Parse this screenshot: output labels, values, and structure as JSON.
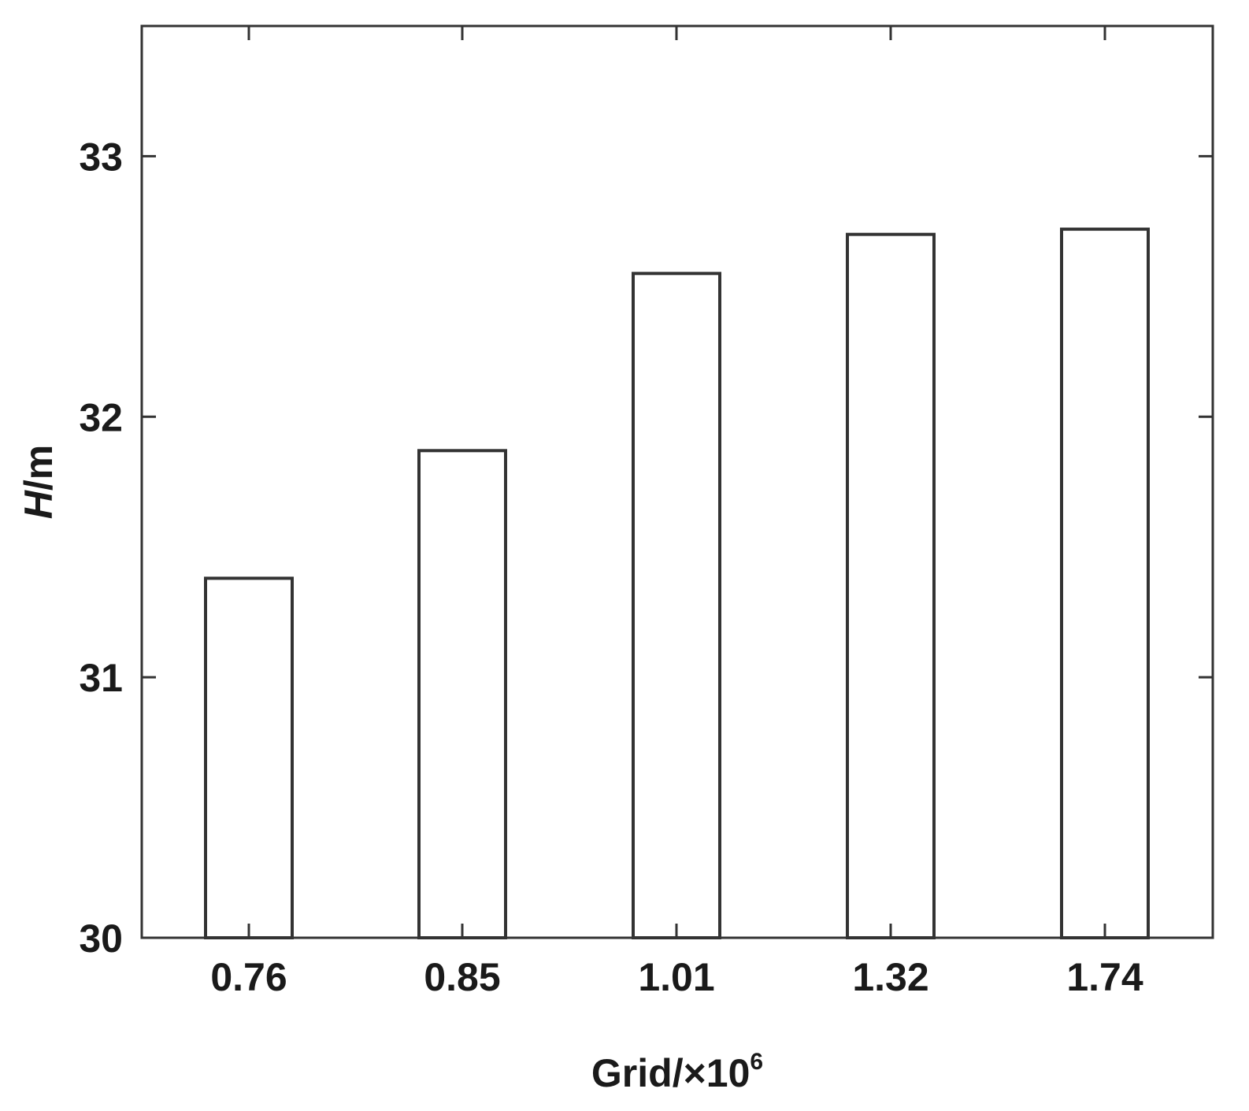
{
  "chart_data": {
    "type": "bar",
    "categories": [
      "0.76",
      "0.85",
      "1.01",
      "1.32",
      "1.74"
    ],
    "values": [
      31.38,
      31.87,
      32.55,
      32.7,
      32.72
    ],
    "title": "",
    "xlabel": {
      "base": "Grid/×10",
      "superscript": "6"
    },
    "ylabel": {
      "italic_part": "H",
      "rest": "/m"
    },
    "ylim": [
      30,
      33.5
    ],
    "yticks": [
      30,
      31,
      32,
      33
    ],
    "grid": false,
    "legend": "none",
    "bar_fill": "#ffffff",
    "bar_stroke": "#333333"
  }
}
